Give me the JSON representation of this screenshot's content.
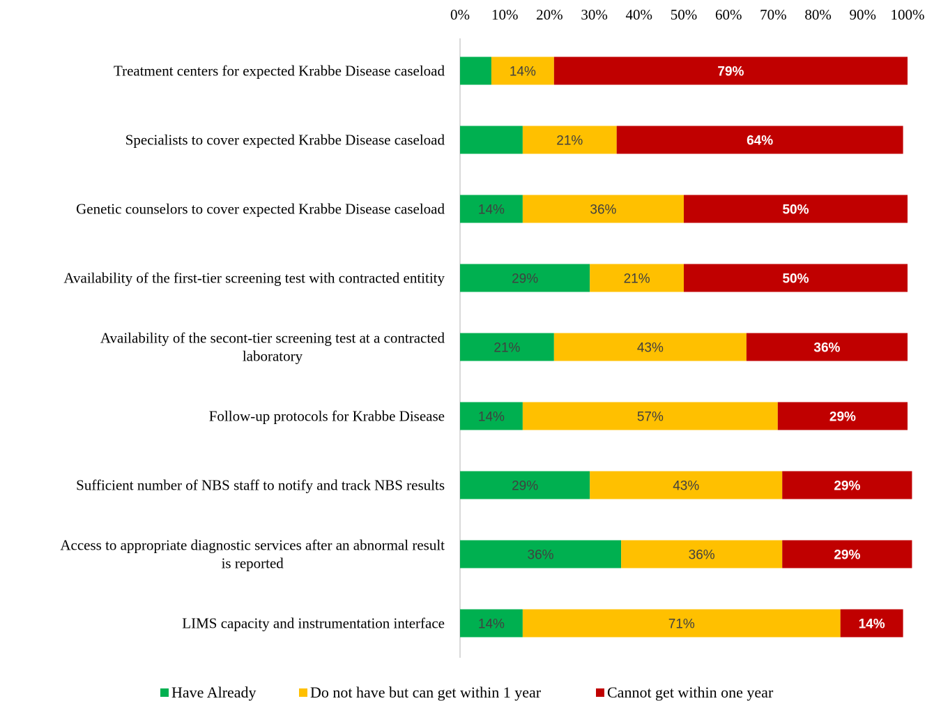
{
  "chart_data": {
    "type": "bar",
    "orientation": "horizontal",
    "stacked": true,
    "title": "",
    "xlabel": "",
    "ylabel": "",
    "xlim": [
      0,
      100
    ],
    "x_ticks": [
      "0%",
      "10%",
      "20%",
      "30%",
      "40%",
      "50%",
      "60%",
      "70%",
      "80%",
      "90%",
      "100%"
    ],
    "x_axis_position": "top",
    "grid": false,
    "legend_position": "bottom",
    "categories": [
      [
        "Treatment centers for expected Krabbe Disease caseload"
      ],
      [
        "Specialists to cover expected Krabbe Disease caseload"
      ],
      [
        "Genetic counselors to cover expected Krabbe Disease caseload"
      ],
      [
        "Availability of the first-tier screening test with contracted entitity"
      ],
      [
        "Availability of the secont-tier screening test at a contracted",
        "laboratory"
      ],
      [
        "Follow-up protocols for Krabbe Disease"
      ],
      [
        "Sufficient number of NBS staff to notify and track NBS results"
      ],
      [
        "Access to appropriate diagnostic services after an abnormal result",
        "is reported"
      ],
      [
        "LIMS capacity and instrumentation interface"
      ]
    ],
    "series": [
      {
        "name": "Have Already",
        "color": "#00b050",
        "label_color": "#404040",
        "label_bold": false,
        "values": [
          7,
          14,
          14,
          29,
          21,
          14,
          29,
          36,
          14
        ],
        "labels": [
          "",
          "",
          "14%",
          "29%",
          "21%",
          "14%",
          "29%",
          "36%",
          "14%"
        ]
      },
      {
        "name": "Do not have but can get within 1 year",
        "color": "#ffc000",
        "label_color": "#404040",
        "label_bold": false,
        "values": [
          14,
          21,
          36,
          21,
          43,
          57,
          43,
          36,
          71
        ],
        "labels": [
          "14%",
          "21%",
          "36%",
          "21%",
          "43%",
          "57%",
          "43%",
          "36%",
          "71%"
        ]
      },
      {
        "name": "Cannot get within one year",
        "color": "#c00000",
        "label_color": "#ffffff",
        "label_bold": true,
        "values": [
          79,
          64,
          50,
          50,
          36,
          29,
          29,
          29,
          14
        ],
        "labels": [
          "79%",
          "64%",
          "50%",
          "50%",
          "36%",
          "29%",
          "29%",
          "29%",
          "14%"
        ]
      }
    ]
  },
  "colors": {
    "axis_line": "#d9d9d9"
  }
}
